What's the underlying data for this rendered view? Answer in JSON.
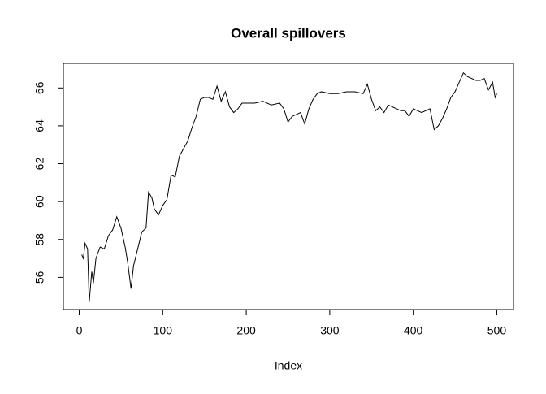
{
  "chart_data": {
    "type": "line",
    "title": "Overall spillovers",
    "x_label": "Index",
    "x": [
      3,
      5,
      7,
      10,
      12,
      15,
      17,
      20,
      25,
      30,
      35,
      40,
      45,
      50,
      55,
      58,
      62,
      65,
      70,
      75,
      80,
      83,
      87,
      90,
      95,
      100,
      105,
      110,
      115,
      120,
      125,
      130,
      135,
      140,
      145,
      150,
      155,
      160,
      165,
      170,
      175,
      180,
      185,
      190,
      195,
      200,
      210,
      220,
      230,
      240,
      245,
      250,
      255,
      260,
      265,
      270,
      275,
      280,
      285,
      290,
      300,
      310,
      320,
      330,
      340,
      345,
      350,
      355,
      360,
      365,
      370,
      380,
      385,
      390,
      395,
      400,
      410,
      420,
      425,
      430,
      435,
      440,
      445,
      450,
      455,
      460,
      465,
      470,
      475,
      480,
      485,
      490,
      495,
      498,
      500
    ],
    "values": [
      57.2,
      57.0,
      57.8,
      57.5,
      54.7,
      56.3,
      55.7,
      57.0,
      57.6,
      57.5,
      58.2,
      58.5,
      59.2,
      58.6,
      57.6,
      56.8,
      55.4,
      56.6,
      57.5,
      58.4,
      58.6,
      60.5,
      60.2,
      59.6,
      59.3,
      59.8,
      60.1,
      61.4,
      61.3,
      62.4,
      62.8,
      63.2,
      63.9,
      64.5,
      65.4,
      65.5,
      65.5,
      65.4,
      66.1,
      65.3,
      65.8,
      65.0,
      64.7,
      64.9,
      65.2,
      65.2,
      65.2,
      65.3,
      65.1,
      65.2,
      64.9,
      64.2,
      64.5,
      64.6,
      64.7,
      64.1,
      64.9,
      65.4,
      65.7,
      65.8,
      65.7,
      65.7,
      65.8,
      65.8,
      65.7,
      66.2,
      65.4,
      64.8,
      65.0,
      64.7,
      65.1,
      64.9,
      64.8,
      64.8,
      64.5,
      64.9,
      64.7,
      64.9,
      63.8,
      64.0,
      64.4,
      64.9,
      65.5,
      65.8,
      66.3,
      66.8,
      66.6,
      66.5,
      66.4,
      66.4,
      66.5,
      65.9,
      66.3,
      65.5,
      65.7
    ],
    "color": "#000000",
    "xlim": [
      -19,
      520
    ],
    "xticks": [
      0,
      100,
      200,
      300,
      400,
      500
    ],
    "ylim": [
      54.3,
      67.3
    ],
    "yticks": [
      56,
      58,
      60,
      62,
      64,
      66
    ]
  }
}
